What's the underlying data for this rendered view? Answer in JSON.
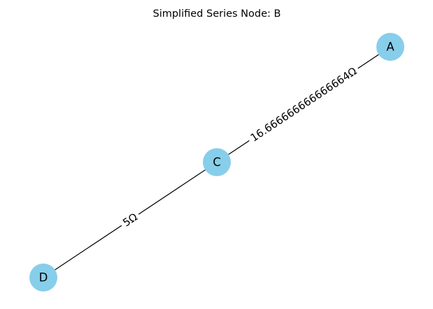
{
  "title": "Simplified Series Node: B",
  "colors": {
    "node_fill": "#87ceeb",
    "edge_stroke": "#000000",
    "label_background": "#ffffff"
  },
  "nodes": [
    {
      "id": "A",
      "label": "A"
    },
    {
      "id": "C",
      "label": "C"
    },
    {
      "id": "D",
      "label": "D"
    }
  ],
  "edges": [
    {
      "from": "A",
      "to": "C",
      "label": "16.666666666666664Ω"
    },
    {
      "from": "C",
      "to": "D",
      "label": "5Ω"
    }
  ]
}
